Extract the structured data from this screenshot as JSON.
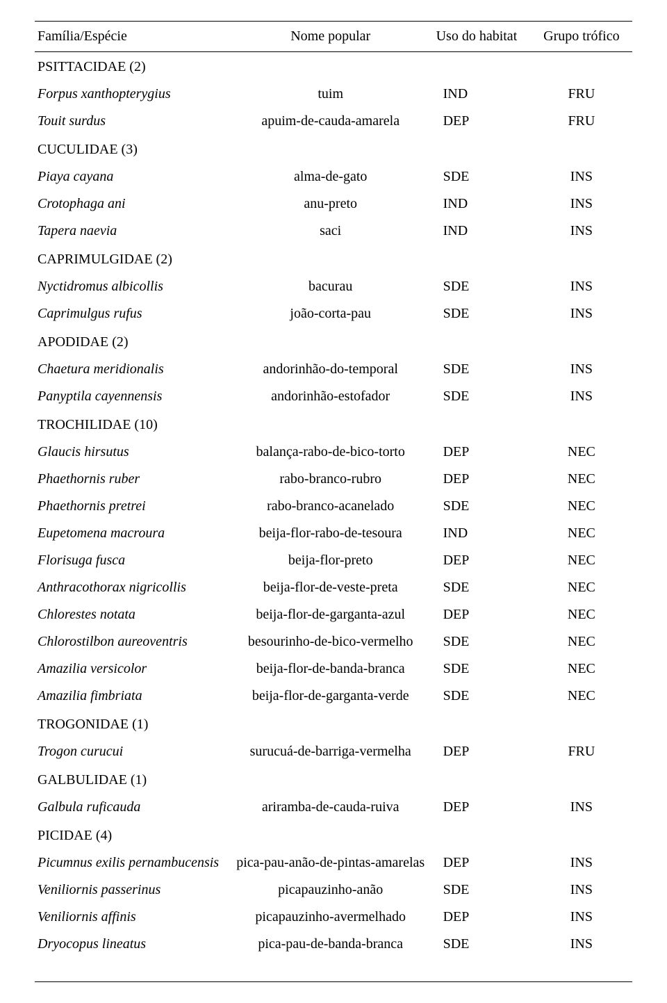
{
  "columns": {
    "species": "Família/Espécie",
    "popular": "Nome popular",
    "habitat": "Uso do habitat",
    "trophic": "Grupo trófico"
  },
  "rows": [
    {
      "type": "family",
      "species": "PSITTACIDAE (2)"
    },
    {
      "type": "species",
      "species": "Forpus xanthopterygius",
      "popular": "tuim",
      "habitat": "IND",
      "trophic": "FRU"
    },
    {
      "type": "species",
      "species": "Touit surdus",
      "popular": "apuim-de-cauda-amarela",
      "habitat": "DEP",
      "trophic": "FRU"
    },
    {
      "type": "family",
      "species": "CUCULIDAE (3)"
    },
    {
      "type": "species",
      "species": "Piaya cayana",
      "popular": "alma-de-gato",
      "habitat": "SDE",
      "trophic": "INS"
    },
    {
      "type": "species",
      "species": "Crotophaga ani",
      "popular": "anu-preto",
      "habitat": "IND",
      "trophic": "INS"
    },
    {
      "type": "species",
      "species": "Tapera naevia",
      "popular": "saci",
      "habitat": "IND",
      "trophic": "INS"
    },
    {
      "type": "family",
      "species": "CAPRIMULGIDAE (2)"
    },
    {
      "type": "species",
      "species": "Nyctidromus albicollis",
      "popular": "bacurau",
      "habitat": "SDE",
      "trophic": "INS"
    },
    {
      "type": "species",
      "species": "Caprimulgus rufus",
      "popular": "joão-corta-pau",
      "habitat": "SDE",
      "trophic": "INS"
    },
    {
      "type": "family",
      "species": "APODIDAE (2)"
    },
    {
      "type": "species",
      "species": "Chaetura meridionalis",
      "popular": "andorinhão-do-temporal",
      "habitat": "SDE",
      "trophic": "INS"
    },
    {
      "type": "species",
      "species": "Panyptila cayennensis",
      "popular": "andorinhão-estofador",
      "habitat": "SDE",
      "trophic": "INS"
    },
    {
      "type": "family",
      "species": "TROCHILIDAE (10)"
    },
    {
      "type": "species",
      "species": "Glaucis hirsutus",
      "popular": "balança-rabo-de-bico-torto",
      "habitat": "DEP",
      "trophic": "NEC"
    },
    {
      "type": "species",
      "species": "Phaethornis ruber",
      "popular": "rabo-branco-rubro",
      "habitat": "DEP",
      "trophic": "NEC"
    },
    {
      "type": "species",
      "species": "Phaethornis pretrei",
      "popular": "rabo-branco-acanelado",
      "habitat": "SDE",
      "trophic": "NEC"
    },
    {
      "type": "species",
      "species": "Eupetomena macroura",
      "popular": "beija-flor-rabo-de-tesoura",
      "habitat": "IND",
      "trophic": "NEC"
    },
    {
      "type": "species",
      "species": "Florisuga fusca",
      "popular": "beija-flor-preto",
      "habitat": "DEP",
      "trophic": "NEC"
    },
    {
      "type": "species",
      "species": "Anthracothorax nigricollis",
      "popular": "beija-flor-de-veste-preta",
      "habitat": "SDE",
      "trophic": "NEC"
    },
    {
      "type": "species",
      "species": "Chlorestes notata",
      "popular": "beija-flor-de-garganta-azul",
      "habitat": "DEP",
      "trophic": "NEC"
    },
    {
      "type": "species",
      "species": "Chlorostilbon aureoventris",
      "popular": "besourinho-de-bico-vermelho",
      "habitat": "SDE",
      "trophic": "NEC"
    },
    {
      "type": "species",
      "species": "Amazilia versicolor",
      "popular": "beija-flor-de-banda-branca",
      "habitat": "SDE",
      "trophic": "NEC"
    },
    {
      "type": "species",
      "species": "Amazilia fimbriata",
      "popular": "beija-flor-de-garganta-verde",
      "habitat": "SDE",
      "trophic": "NEC"
    },
    {
      "type": "family",
      "species": "TROGONIDAE (1)"
    },
    {
      "type": "species",
      "species": "Trogon curucui",
      "popular": "surucuá-de-barriga-vermelha",
      "habitat": "DEP",
      "trophic": "FRU"
    },
    {
      "type": "family",
      "species": "GALBULIDAE (1)"
    },
    {
      "type": "species",
      "species": "Galbula ruficauda",
      "popular": "ariramba-de-cauda-ruiva",
      "habitat": "DEP",
      "trophic": "INS"
    },
    {
      "type": "family",
      "species": "PICIDAE (4)"
    },
    {
      "type": "species",
      "species": "Picumnus exilis pernambucensis",
      "popular": "pica-pau-anão-de-pintas-amarelas",
      "habitat": "DEP",
      "trophic": "INS"
    },
    {
      "type": "species",
      "species": "Veniliornis passerinus",
      "popular": "picapauzinho-anão",
      "habitat": "SDE",
      "trophic": "INS"
    },
    {
      "type": "species",
      "species": "Veniliornis affinis",
      "popular": "picapauzinho-avermelhado",
      "habitat": "DEP",
      "trophic": "INS"
    },
    {
      "type": "species",
      "species": "Dryocopus lineatus",
      "popular": "pica-pau-de-banda-branca",
      "habitat": "SDE",
      "trophic": "INS"
    }
  ]
}
